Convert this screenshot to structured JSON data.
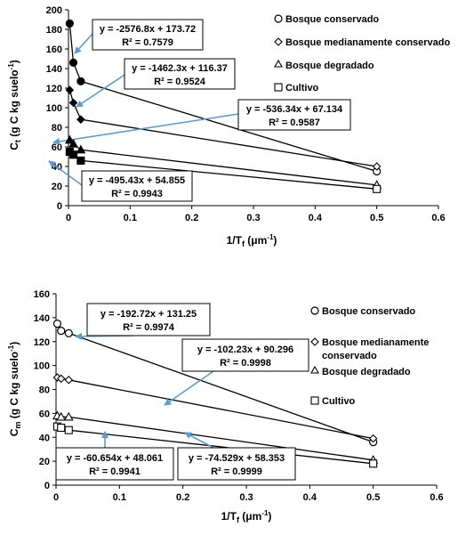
{
  "colors": {
    "line": "#000000",
    "arrow": "#5b9bd5",
    "axis": "#000000"
  },
  "chart_data": [
    {
      "type": "scatter",
      "ylabel_main": "C",
      "ylabel_sub": "t",
      "ylabel_unit": " (g C kg suelo",
      "ylabel_exp": "-1",
      "ylabel_close": ")",
      "xlabel_main": "1/T",
      "xlabel_sub": "f",
      "xlabel_unit": " (μm",
      "xlabel_exp": "-1",
      "xlabel_close": ")",
      "xlim": [
        0,
        0.6
      ],
      "ylim": [
        0,
        200
      ],
      "x_ticks": [
        "0",
        "0.1",
        "0.2",
        "0.3",
        "0.4",
        "0.5",
        "0.6"
      ],
      "y_ticks": [
        "0",
        "20",
        "40",
        "60",
        "80",
        "100",
        "120",
        "140",
        "160",
        "180",
        "200"
      ],
      "grid": false,
      "legend_position": "right",
      "series": [
        {
          "name": "Bosque conservado",
          "marker": "circle",
          "slope": -2576.8,
          "intercept": 173.72,
          "x": [
            0.002,
            0.008,
            0.02,
            0.5
          ],
          "y": [
            186,
            146,
            127,
            35
          ],
          "equation": "y = -2576.8x + 173.72",
          "r2": "R² = 0.7579"
        },
        {
          "name": "Bosque medianamente conservado",
          "marker": "diamond",
          "slope": -1462.3,
          "intercept": 116.37,
          "x": [
            0.002,
            0.008,
            0.02,
            0.5
          ],
          "y": [
            118,
            105,
            88,
            40
          ],
          "equation": "y = -1462.3x + 116.37",
          "r2": "R² = 0.9524"
        },
        {
          "name": "Bosque degradado",
          "marker": "triangle",
          "slope": -536.34,
          "intercept": 67.134,
          "x": [
            0.002,
            0.008,
            0.02,
            0.5
          ],
          "y": [
            67,
            63,
            57,
            21
          ],
          "equation": "y = -536.34x + 67.134",
          "r2": "R² = 0.9587"
        },
        {
          "name": "Cultivo",
          "marker": "square",
          "slope": -495.43,
          "intercept": 54.855,
          "x": [
            0.002,
            0.008,
            0.02,
            0.5
          ],
          "y": [
            55,
            52,
            46,
            17
          ],
          "equation": "y = -495.43x + 54.855",
          "r2": "R² = 0.9943"
        }
      ]
    },
    {
      "type": "scatter",
      "ylabel_main": "C",
      "ylabel_sub": "m",
      "ylabel_unit": " (g C kg suelo",
      "ylabel_exp": "-1",
      "ylabel_close": ")",
      "xlabel_main": "1/T",
      "xlabel_sub": "f",
      "xlabel_unit": " (μm",
      "xlabel_exp": "-1",
      "xlabel_close": ")",
      "xlim": [
        0,
        0.6
      ],
      "ylim": [
        0,
        160
      ],
      "x_ticks": [
        "0",
        "0.1",
        "0.2",
        "0.3",
        "0.4",
        "0.5",
        "0.6"
      ],
      "y_ticks": [
        "0",
        "20",
        "40",
        "60",
        "80",
        "100",
        "120",
        "140",
        "160"
      ],
      "grid": false,
      "legend_position": "right",
      "series": [
        {
          "name": "Bosque conservado",
          "marker": "circle",
          "slope": -192.72,
          "intercept": 131.25,
          "x": [
            0.002,
            0.008,
            0.02,
            0.5
          ],
          "y": [
            135,
            129,
            127,
            36
          ],
          "equation": "y = -192.72x + 131.25",
          "r2": "R² = 0.9974"
        },
        {
          "name_line1": "Bosque medianamente",
          "name_line2": "conservado",
          "marker": "diamond",
          "slope": -102.23,
          "intercept": 90.296,
          "x": [
            0.002,
            0.008,
            0.02,
            0.5
          ],
          "y": [
            90,
            89,
            88,
            39
          ],
          "equation": "y = -102.23x + 90.296",
          "r2": "R² = 0.9998"
        },
        {
          "name": "Bosque degradado",
          "marker": "triangle",
          "slope": -74.529,
          "intercept": 58.353,
          "x": [
            0.002,
            0.008,
            0.02,
            0.5
          ],
          "y": [
            58,
            57,
            57,
            21
          ],
          "equation": "y = -74.529x + 58.353",
          "r2": "R² = 0.9999"
        },
        {
          "name": "Cultivo",
          "marker": "square",
          "slope": -60.654,
          "intercept": 48.061,
          "x": [
            0.002,
            0.008,
            0.02,
            0.5
          ],
          "y": [
            49,
            48,
            46,
            18
          ],
          "equation": "y = -60.654x + 48.061",
          "r2": "R² = 0.9941"
        }
      ]
    }
  ]
}
